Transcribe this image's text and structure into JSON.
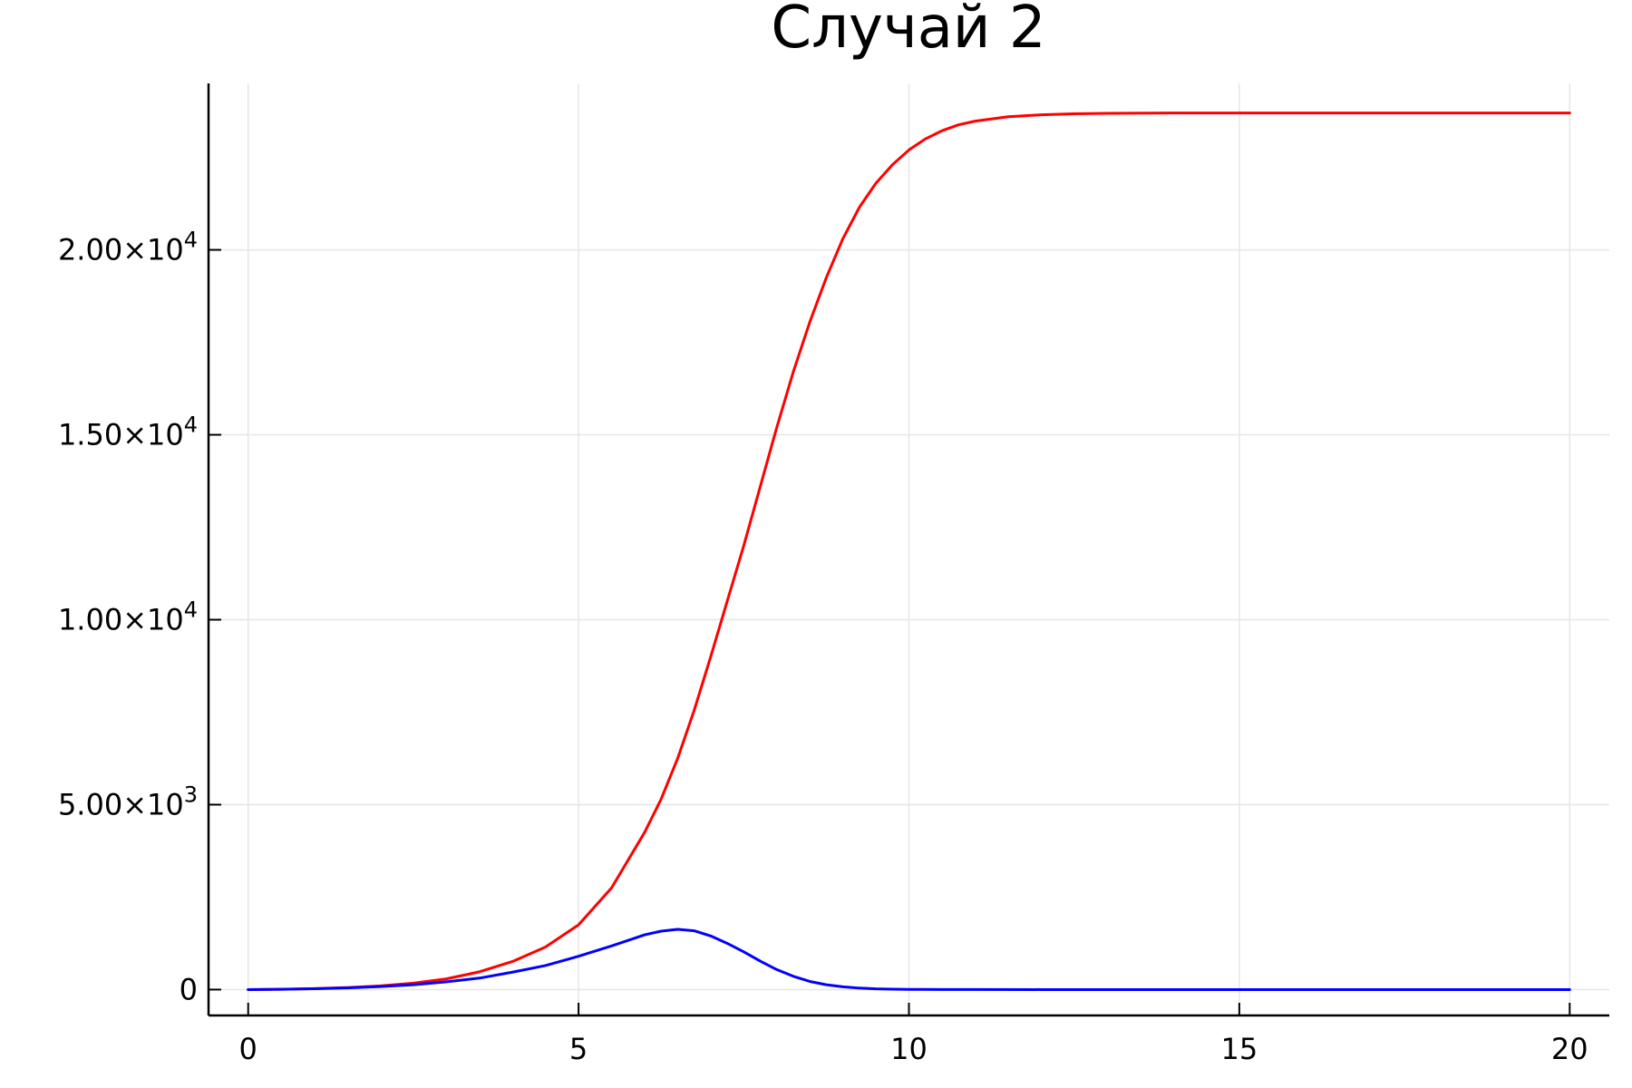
{
  "chart_data": {
    "type": "line",
    "title": "Случай 2",
    "xlabel": "",
    "ylabel": "",
    "xlim": [
      -0.6,
      20.6
    ],
    "ylim": [
      -700,
      24500
    ],
    "grid": true,
    "legend": "none",
    "x_ticks": [
      {
        "value": 0,
        "label": "0"
      },
      {
        "value": 5,
        "label": "5"
      },
      {
        "value": 10,
        "label": "10"
      },
      {
        "value": 15,
        "label": "15"
      },
      {
        "value": 20,
        "label": "20"
      }
    ],
    "y_ticks": [
      {
        "value": 0,
        "mantissa": "0",
        "exponent": ""
      },
      {
        "value": 5000,
        "mantissa": "5.00×10",
        "exponent": "3"
      },
      {
        "value": 10000,
        "mantissa": "1.00×10",
        "exponent": "4"
      },
      {
        "value": 15000,
        "mantissa": "1.50×10",
        "exponent": "4"
      },
      {
        "value": 20000,
        "mantissa": "2.00×10",
        "exponent": "4"
      }
    ],
    "series": [
      {
        "color": "#ff0000",
        "x": [
          0,
          0.5,
          1,
          1.5,
          2,
          2.5,
          3,
          3.5,
          4,
          4.5,
          5,
          5.5,
          6,
          6.25,
          6.5,
          6.75,
          7,
          7.25,
          7.5,
          7.75,
          8,
          8.25,
          8.5,
          8.75,
          9,
          9.25,
          9.5,
          9.75,
          10,
          10.25,
          10.5,
          10.75,
          11,
          11.5,
          12,
          12.5,
          13,
          14,
          15,
          16,
          17,
          18,
          19,
          20
        ],
        "y": [
          0,
          8,
          25,
          55,
          100,
          175,
          290,
          480,
          760,
          1150,
          1750,
          2750,
          4250,
          5150,
          6250,
          7550,
          9000,
          10500,
          12000,
          13600,
          15200,
          16700,
          18050,
          19250,
          20300,
          21150,
          21800,
          22300,
          22700,
          23000,
          23220,
          23380,
          23480,
          23600,
          23650,
          23680,
          23690,
          23700,
          23700,
          23700,
          23700,
          23700,
          23700,
          23700
        ]
      },
      {
        "color": "#0000ff",
        "x": [
          0,
          0.5,
          1,
          1.5,
          2,
          2.5,
          3,
          3.5,
          4,
          4.5,
          5,
          5.5,
          6,
          6.25,
          6.5,
          6.75,
          7,
          7.25,
          7.5,
          7.75,
          8,
          8.25,
          8.5,
          8.75,
          9,
          9.25,
          9.5,
          9.75,
          10,
          10.5,
          11,
          12,
          13,
          14,
          15,
          16,
          17,
          18,
          19,
          20
        ],
        "y": [
          0,
          8,
          22,
          45,
          80,
          130,
          210,
          310,
          470,
          650,
          900,
          1180,
          1480,
          1580,
          1630,
          1590,
          1450,
          1250,
          1020,
          770,
          540,
          360,
          220,
          130,
          75,
          40,
          20,
          12,
          6,
          3,
          1,
          0,
          0,
          0,
          0,
          0,
          0,
          0,
          0,
          0
        ]
      }
    ]
  }
}
